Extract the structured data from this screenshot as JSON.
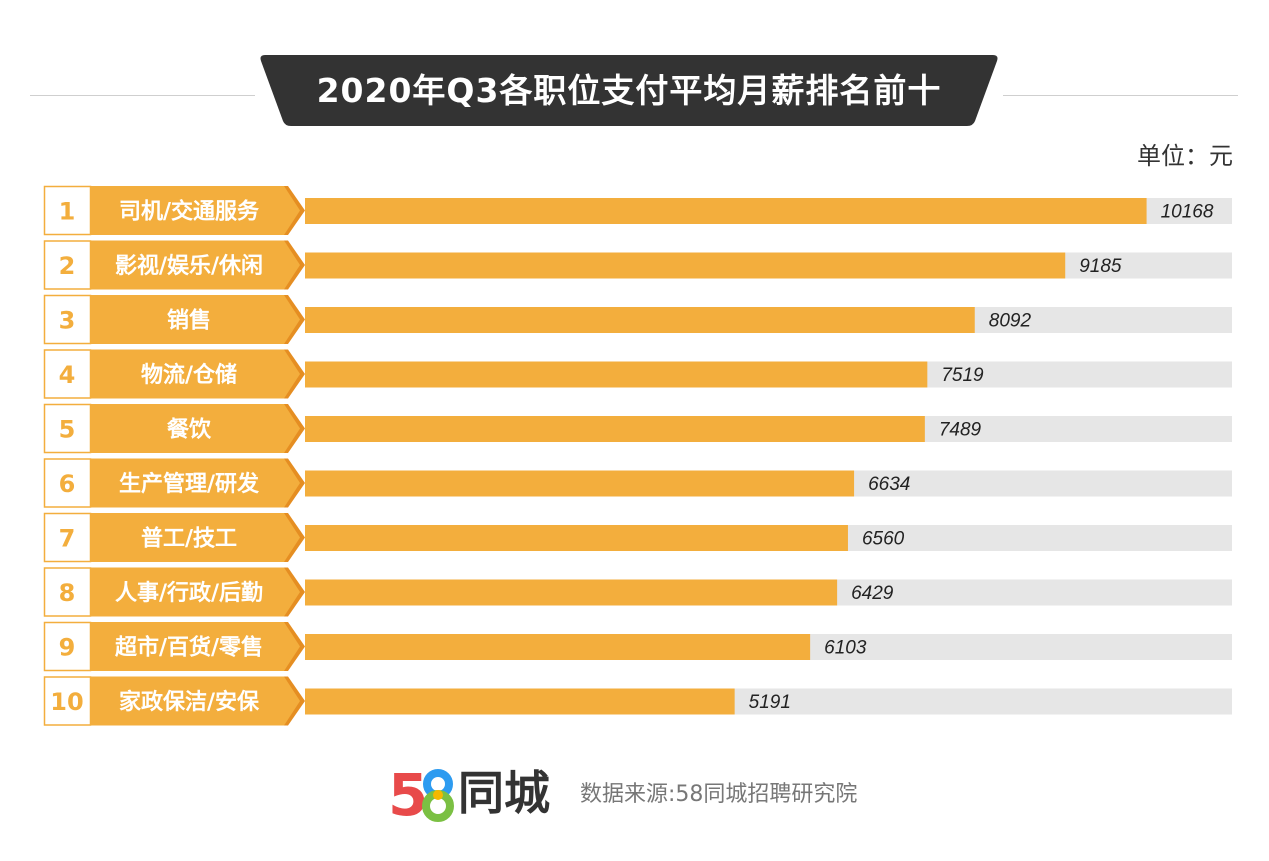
{
  "header": {
    "title": "2020年Q3各职位支付平均月薪排名前十",
    "unit": "单位：元"
  },
  "footer": {
    "brand": "同城",
    "logo_digits": "58",
    "source": "数据来源:58同城招聘研究院"
  },
  "colors": {
    "bar": "#f3ae3d",
    "bar_track": "#e6e6e6",
    "label_box": "#f3ae3d",
    "label_box_shadow": "#e58e22",
    "rank_border": "#f3ae3d",
    "rank_text": "#f3ae3d",
    "title_banner": "#333333",
    "logo_5": "#e84a4a",
    "logo_8_top": "#2d9bf0",
    "logo_8_bottom": "#7bc043",
    "logo_8_mid": "#f5b800"
  },
  "chart_data": {
    "type": "bar",
    "orientation": "horizontal",
    "title": "2020年Q3各职位支付平均月薪排名前十",
    "unit": "单位：元",
    "ranks": [
      "1",
      "2",
      "3",
      "4",
      "5",
      "6",
      "7",
      "8",
      "9",
      "10"
    ],
    "categories": [
      "司机/交通服务",
      "影视/娱乐/休闲",
      "销售",
      "物流/仓储",
      "餐饮",
      "生产管理/研发",
      "普工/技工",
      "人事/行政/后勤",
      "超市/百货/零售",
      "家政保洁/安保"
    ],
    "values": [
      10168,
      9185,
      8092,
      7519,
      7489,
      6634,
      6560,
      6429,
      6103,
      5191
    ],
    "value_labels": [
      "10168",
      "9185",
      "8092",
      "7519",
      "7489",
      "6634",
      "6560",
      "6429",
      "6103",
      "5191"
    ],
    "xlim": [
      0,
      11200
    ],
    "grid": false,
    "legend": "none"
  }
}
